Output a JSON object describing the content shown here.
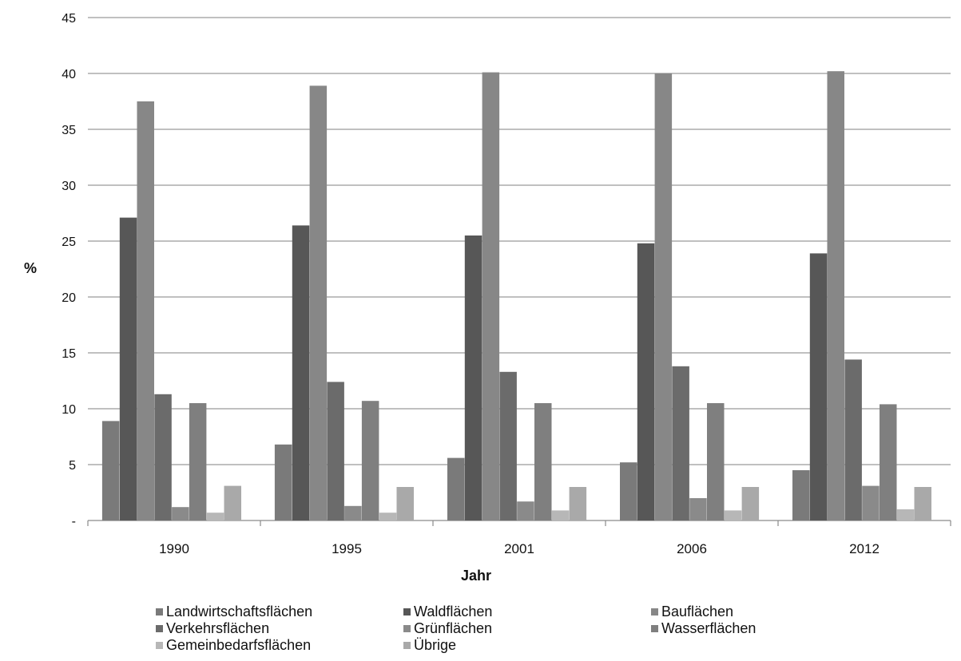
{
  "chart_data": {
    "type": "bar",
    "categories": [
      "1990",
      "1995",
      "2001",
      "2006",
      "2012"
    ],
    "xlabel": "Jahr",
    "ylabel": "%",
    "ylim": [
      0,
      45
    ],
    "yticks": [
      "-",
      "5",
      "10",
      "15",
      "20",
      "25",
      "30",
      "35",
      "40",
      "45"
    ],
    "grid": true,
    "legend_position": "bottom",
    "series": [
      {
        "name": "Landwirtschaftsflächen",
        "color": "#7a7a7a",
        "values": [
          8.9,
          6.8,
          5.6,
          5.2,
          4.5
        ]
      },
      {
        "name": "Waldflächen",
        "color": "#575757",
        "values": [
          27.1,
          26.4,
          25.5,
          24.8,
          23.9
        ]
      },
      {
        "name": "Bauflächen",
        "color": "#878787",
        "values": [
          37.5,
          38.9,
          40.1,
          40.0,
          40.2
        ]
      },
      {
        "name": "Verkehrsflächen",
        "color": "#6b6b6b",
        "values": [
          11.3,
          12.4,
          13.3,
          13.8,
          14.4
        ]
      },
      {
        "name": "Grünflächen",
        "color": "#8a8a8a",
        "values": [
          1.2,
          1.3,
          1.7,
          2.0,
          3.1
        ]
      },
      {
        "name": "Wasserflächen",
        "color": "#7f7f7f",
        "values": [
          10.5,
          10.7,
          10.5,
          10.5,
          10.4
        ]
      },
      {
        "name": "Gemeinbedarfsflächen",
        "color": "#b7b7b7",
        "values": [
          0.7,
          0.7,
          0.9,
          0.9,
          1.0
        ]
      },
      {
        "name": "Übrige",
        "color": "#a9a9a9",
        "values": [
          3.1,
          3.0,
          3.0,
          3.0,
          3.0
        ]
      }
    ]
  }
}
